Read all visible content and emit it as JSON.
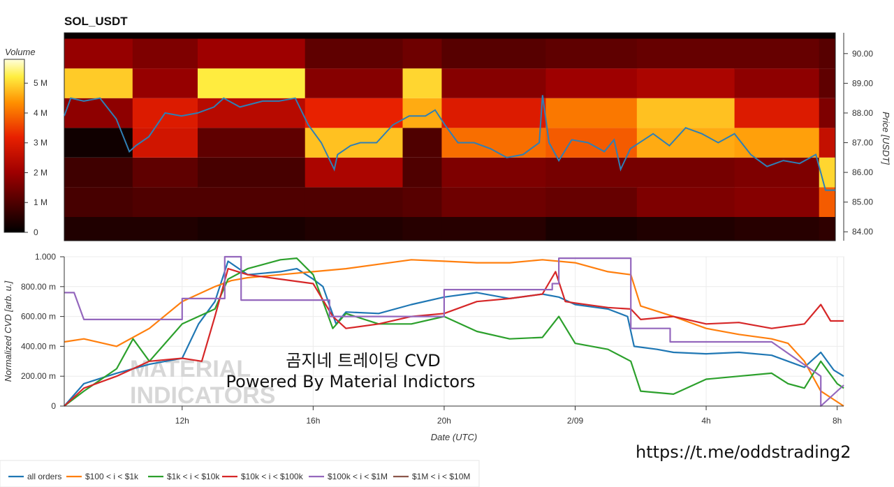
{
  "header": {
    "title": "SOL_USDT"
  },
  "overlay": {
    "line1": "곰지네 트레이딩 CVD",
    "line2": "Powered By Material Indictors",
    "url": "https://t.me/oddstrading2",
    "watermark_line1": "MATERIAL",
    "watermark_line2": "INDICATORS"
  },
  "colors": {
    "heat_low": "#000000",
    "heat_mid": "#cc1100",
    "heat_high": "#ffff66",
    "price_line": "#2f7fb5"
  },
  "chart_data": [
    {
      "type": "heatmap",
      "title": "SOL_USDT",
      "xlabel": "",
      "ylabel": "Price [USDT]",
      "colorbar_label": "Volume",
      "colorbar_ticks": [
        "0",
        "1 M",
        "2 M",
        "3 M",
        "4 M",
        "5 M"
      ],
      "colorbar_range": [
        0,
        5800000
      ],
      "ylim": [
        83.7,
        90.7
      ],
      "y_ticks": [
        "84.00",
        "85.00",
        "86.00",
        "87.00",
        "88.00",
        "89.00",
        "90.00"
      ],
      "price_bins": [
        [
          83.7,
          84.5
        ],
        [
          84.5,
          85.5
        ],
        [
          85.5,
          86.5
        ],
        [
          86.5,
          87.5
        ],
        [
          87.5,
          88.5
        ],
        [
          88.5,
          89.5
        ],
        [
          89.5,
          90.5
        ],
        [
          90.5,
          90.7
        ]
      ],
      "time_range_hours": [
        8.4,
        32.1
      ],
      "segments": [
        {
          "t": [
            8.4,
            10.5
          ],
          "volumes_m": [
            0.4,
            0.9,
            0.8,
            0.2,
            1.8,
            4.9,
            1.9,
            0.1
          ]
        },
        {
          "t": [
            10.5,
            12.5
          ],
          "volumes_m": [
            0.4,
            1.0,
            1.2,
            2.8,
            3.0,
            1.9,
            1.6,
            0.1
          ]
        },
        {
          "t": [
            12.5,
            15.8
          ],
          "volumes_m": [
            0.3,
            1.0,
            0.9,
            1.2,
            2.4,
            5.2,
            2.0,
            0.1
          ]
        },
        {
          "t": [
            15.8,
            18.8
          ],
          "volumes_m": [
            0.4,
            1.0,
            2.2,
            4.8,
            3.2,
            1.7,
            1.2,
            0.1
          ]
        },
        {
          "t": [
            18.8,
            20.0
          ],
          "volumes_m": [
            0.5,
            1.1,
            1.0,
            1.0,
            4.6,
            5.0,
            1.4,
            0.1
          ]
        },
        {
          "t": [
            20.0,
            23.2
          ],
          "volumes_m": [
            0.5,
            1.4,
            1.6,
            4.0,
            3.0,
            1.7,
            1.1,
            0.1
          ]
        },
        {
          "t": [
            23.2,
            26.0
          ],
          "volumes_m": [
            0.3,
            1.3,
            1.5,
            3.8,
            4.1,
            2.0,
            1.2,
            0.1
          ]
        },
        {
          "t": [
            26.0,
            29.0
          ],
          "volumes_m": [
            0.4,
            1.6,
            1.5,
            4.6,
            4.8,
            2.2,
            1.3,
            0.1
          ]
        },
        {
          "t": [
            29.0,
            31.6
          ],
          "volumes_m": [
            0.5,
            1.7,
            1.6,
            4.5,
            3.0,
            1.8,
            1.3,
            0.1
          ]
        },
        {
          "t": [
            31.6,
            32.1
          ],
          "volumes_m": [
            0.6,
            3.8,
            5.0,
            2.6,
            1.6,
            1.2,
            1.1,
            0.1
          ]
        }
      ],
      "series": [
        {
          "name": "price",
          "x_hours": [
            8.4,
            8.6,
            9.0,
            9.5,
            10.0,
            10.4,
            10.6,
            11.0,
            11.5,
            12.0,
            12.5,
            13.0,
            13.3,
            13.8,
            14.5,
            15.0,
            15.5,
            15.9,
            16.3,
            16.7,
            16.8,
            17.2,
            17.5,
            18.0,
            18.5,
            19.0,
            19.5,
            19.8,
            20.1,
            20.5,
            21.0,
            21.5,
            22.0,
            22.5,
            23.0,
            23.1,
            23.3,
            23.6,
            24.0,
            24.5,
            25.0,
            25.3,
            25.5,
            25.8,
            26.5,
            27.0,
            27.5,
            28.0,
            28.5,
            29.0,
            29.5,
            30.0,
            30.5,
            31.0,
            31.5,
            31.8,
            32.1
          ],
          "y": [
            87.9,
            88.5,
            88.4,
            88.5,
            87.8,
            86.7,
            86.9,
            87.2,
            88.0,
            87.9,
            88.0,
            88.2,
            88.5,
            88.2,
            88.4,
            88.4,
            88.5,
            87.6,
            87.0,
            86.1,
            86.6,
            86.9,
            87.0,
            87.0,
            87.6,
            87.9,
            87.9,
            88.1,
            87.6,
            87.0,
            87.0,
            86.8,
            86.5,
            86.6,
            87.0,
            88.6,
            87.0,
            86.4,
            87.1,
            87.0,
            86.7,
            87.1,
            86.1,
            86.8,
            87.3,
            86.9,
            87.5,
            87.3,
            87.0,
            87.3,
            86.6,
            86.2,
            86.4,
            86.3,
            86.6,
            85.4,
            85.4
          ]
        }
      ]
    },
    {
      "type": "line",
      "xlabel": "Date (UTC)",
      "ylabel": "Normalized CVD [arb. u.]",
      "ylim": [
        0,
        1
      ],
      "y_ticks": [
        "0",
        "200.00 m",
        "400.00 m",
        "600.00 m",
        "800.00 m",
        "1.000"
      ],
      "x_ticks": [
        {
          "label": "12h",
          "hours": 12
        },
        {
          "label": "16h",
          "hours": 16
        },
        {
          "label": "20h",
          "hours": 20
        },
        {
          "label": "2/09",
          "hours": 24
        },
        {
          "label": "4h",
          "hours": 28
        },
        {
          "label": "8h",
          "hours": 32
        }
      ],
      "xlim_hours": [
        8.4,
        32.2
      ],
      "legend_position": "bottom-left",
      "series": [
        {
          "name": "all orders",
          "color": "#1f77b4",
          "x": [
            8.4,
            9.0,
            10.0,
            11.0,
            12.0,
            12.5,
            13.0,
            13.4,
            14.0,
            15.0,
            15.5,
            16.0,
            16.3,
            16.7,
            17.0,
            18.0,
            19.0,
            20.0,
            21.0,
            22.0,
            23.0,
            23.5,
            24.0,
            25.0,
            25.6,
            25.8,
            26.5,
            27.0,
            28.0,
            29.0,
            30.0,
            30.5,
            31.0,
            31.5,
            31.9,
            32.2
          ],
          "y": [
            0.0,
            0.15,
            0.22,
            0.28,
            0.32,
            0.55,
            0.7,
            0.97,
            0.88,
            0.9,
            0.92,
            0.85,
            0.8,
            0.55,
            0.63,
            0.62,
            0.68,
            0.73,
            0.76,
            0.72,
            0.75,
            0.73,
            0.68,
            0.65,
            0.6,
            0.4,
            0.38,
            0.36,
            0.35,
            0.36,
            0.34,
            0.3,
            0.26,
            0.36,
            0.24,
            0.2
          ]
        },
        {
          "name": "$100 < i < $1k",
          "color": "#ff7f0e",
          "x": [
            8.4,
            9.0,
            10.0,
            11.0,
            12.0,
            13.0,
            13.5,
            14.0,
            15.0,
            16.0,
            17.0,
            18.0,
            19.0,
            20.0,
            21.0,
            22.0,
            23.0,
            24.0,
            25.0,
            25.7,
            26.0,
            27.0,
            28.0,
            29.0,
            30.0,
            30.5,
            31.0,
            31.5,
            32.2
          ],
          "y": [
            0.43,
            0.45,
            0.4,
            0.52,
            0.7,
            0.8,
            0.84,
            0.86,
            0.88,
            0.9,
            0.92,
            0.95,
            0.98,
            0.97,
            0.96,
            0.96,
            0.98,
            0.96,
            0.9,
            0.88,
            0.67,
            0.6,
            0.52,
            0.48,
            0.45,
            0.42,
            0.3,
            0.1,
            0.0
          ]
        },
        {
          "name": "$1k < i < $10k",
          "color": "#2ca02c",
          "x": [
            8.4,
            9.0,
            10.0,
            10.5,
            11.0,
            12.0,
            13.0,
            13.4,
            14.0,
            15.0,
            15.5,
            16.0,
            16.6,
            17.0,
            18.0,
            19.0,
            20.0,
            21.0,
            22.0,
            23.0,
            23.5,
            24.0,
            25.0,
            25.7,
            26.0,
            27.0,
            28.0,
            29.0,
            30.0,
            30.5,
            31.0,
            31.5,
            32.0,
            32.2
          ],
          "y": [
            0.0,
            0.1,
            0.25,
            0.45,
            0.3,
            0.55,
            0.65,
            0.85,
            0.92,
            0.98,
            0.99,
            0.88,
            0.52,
            0.62,
            0.55,
            0.55,
            0.6,
            0.5,
            0.45,
            0.46,
            0.6,
            0.42,
            0.38,
            0.3,
            0.1,
            0.08,
            0.18,
            0.2,
            0.22,
            0.15,
            0.12,
            0.3,
            0.15,
            0.12
          ]
        },
        {
          "name": "$10k < i < $100k",
          "color": "#d62728",
          "x": [
            8.4,
            9.0,
            10.0,
            11.0,
            12.0,
            12.6,
            13.0,
            13.4,
            14.0,
            15.0,
            16.0,
            16.6,
            17.0,
            18.0,
            19.0,
            20.0,
            21.0,
            22.0,
            23.0,
            23.4,
            23.7,
            24.0,
            25.0,
            25.7,
            26.0,
            27.0,
            28.0,
            29.0,
            30.0,
            31.0,
            31.5,
            31.8,
            32.2
          ],
          "y": [
            0.0,
            0.12,
            0.2,
            0.3,
            0.32,
            0.3,
            0.6,
            0.92,
            0.88,
            0.85,
            0.82,
            0.6,
            0.52,
            0.55,
            0.6,
            0.62,
            0.7,
            0.72,
            0.75,
            0.9,
            0.7,
            0.69,
            0.66,
            0.65,
            0.58,
            0.6,
            0.55,
            0.56,
            0.52,
            0.55,
            0.68,
            0.57,
            0.57
          ]
        },
        {
          "name": "$100k < i < $1M",
          "color": "#9467bd",
          "step": true,
          "x": [
            8.4,
            8.7,
            9.0,
            12.0,
            12.0,
            13.3,
            13.3,
            13.8,
            13.8,
            16.5,
            16.5,
            20.0,
            20.0,
            23.3,
            23.3,
            23.5,
            23.5,
            25.7,
            25.7,
            26.9,
            26.9,
            30.0,
            30.0,
            31.5,
            31.5,
            32.2
          ],
          "y": [
            0.76,
            0.76,
            0.58,
            0.58,
            0.72,
            0.72,
            1.0,
            1.0,
            0.71,
            0.71,
            0.6,
            0.6,
            0.78,
            0.78,
            0.82,
            0.82,
            0.99,
            0.99,
            0.52,
            0.52,
            0.43,
            0.43,
            0.43,
            0.2,
            0.0,
            0.14
          ]
        },
        {
          "name": "$1M < i < $10M",
          "color": "#8c564b",
          "x": [],
          "y": []
        }
      ]
    }
  ]
}
